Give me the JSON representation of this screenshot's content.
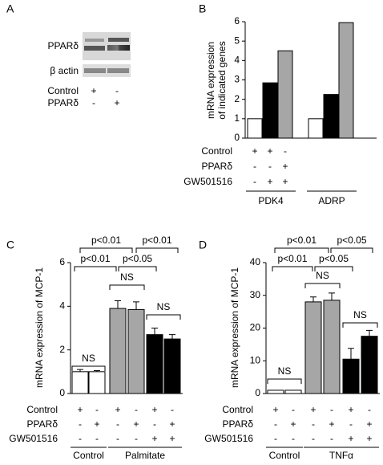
{
  "panel_labels": [
    "A",
    "B",
    "C",
    "D"
  ],
  "blot": {
    "rows": [
      "PPARδ",
      "β actin"
    ],
    "conditions": [
      {
        "name": "Control",
        "signs": [
          "+",
          "-"
        ]
      },
      {
        "name": "PPARδ",
        "signs": [
          "-",
          "+"
        ]
      }
    ]
  },
  "chart_data": [
    {
      "type": "bar",
      "ylabel": [
        "mRNA expression",
        "of indicated genes"
      ],
      "categories": [
        "PDK4",
        "ADRP"
      ],
      "series": [
        {
          "color": "#ffffff",
          "values": [
            1,
            1
          ]
        },
        {
          "color": "#000000",
          "values": [
            2.85,
            2.25
          ]
        },
        {
          "color": "#a6a6a6",
          "values": [
            4.5,
            5.95
          ]
        }
      ],
      "conditions": [
        {
          "name": "Control",
          "signs": [
            "+",
            "+",
            "-"
          ]
        },
        {
          "name": "PPARδ",
          "signs": [
            "-",
            "-",
            "+"
          ]
        },
        {
          "name": "GW501516",
          "signs": [
            "-",
            "+",
            "+"
          ]
        }
      ],
      "ylim": [
        0,
        6
      ],
      "yticks": [
        0,
        1,
        2,
        3,
        4,
        5,
        6
      ]
    },
    {
      "type": "errorbar",
      "ylabel": "mRNA expression of MCP-1",
      "values": [
        1,
        1,
        3.9,
        3.85,
        2.7,
        2.5
      ],
      "errors": [
        0.1,
        0.05,
        0.35,
        0.35,
        0.3,
        0.2
      ],
      "colors": [
        "#ffffff",
        "#ffffff",
        "#a6a6a6",
        "#a6a6a6",
        "#000000",
        "#000000"
      ],
      "conditions": [
        {
          "name": "Control",
          "signs": [
            "+",
            "-",
            "+",
            "-",
            "+",
            "-"
          ]
        },
        {
          "name": "PPARδ",
          "signs": [
            "-",
            "+",
            "-",
            "+",
            "-",
            "+"
          ]
        },
        {
          "name": "GW501516",
          "signs": [
            "-",
            "-",
            "-",
            "-",
            "+",
            "+"
          ]
        }
      ],
      "groups": [
        "Control",
        "Palmitate"
      ],
      "annotations": [
        "p<0.01",
        "p<0.01",
        "p<0.01",
        "p<0.05",
        "NS",
        "NS",
        "NS"
      ],
      "ylim": [
        0,
        6
      ],
      "yticks": [
        0,
        2,
        4,
        6
      ]
    },
    {
      "type": "errorbar",
      "ylabel": "mRNA expression of MCP-1",
      "values": [
        1,
        1,
        28,
        28.5,
        10.5,
        17.5
      ],
      "errors": [
        0,
        0,
        1.5,
        2.2,
        3.3,
        1.8
      ],
      "colors": [
        "#ffffff",
        "#ffffff",
        "#a6a6a6",
        "#a6a6a6",
        "#000000",
        "#000000"
      ],
      "conditions": [
        {
          "name": "Control",
          "signs": [
            "+",
            "-",
            "+",
            "-",
            "+",
            "-"
          ]
        },
        {
          "name": "PPARδ",
          "signs": [
            "-",
            "+",
            "-",
            "+",
            "-",
            "+"
          ]
        },
        {
          "name": "GW501516",
          "signs": [
            "-",
            "-",
            "-",
            "-",
            "+",
            "+"
          ]
        }
      ],
      "groups": [
        "Control",
        "TNFα"
      ],
      "annotations": [
        "p<0.01",
        "p<0.05",
        "p<0.01",
        "p<0.05",
        "NS",
        "NS",
        "NS"
      ],
      "ylim": [
        0,
        40
      ],
      "yticks": [
        0,
        10,
        20,
        30,
        40
      ]
    }
  ]
}
